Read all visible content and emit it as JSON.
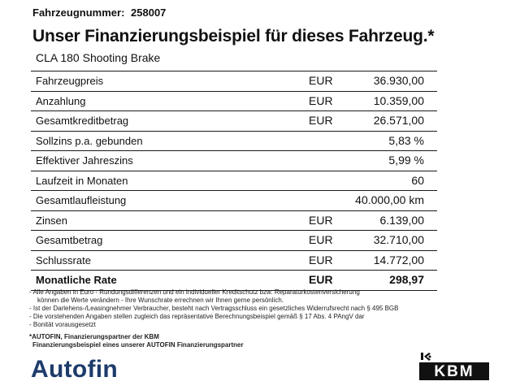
{
  "header": {
    "vehicle_number_label": "Fahrzeugnummer:",
    "vehicle_number": "258007",
    "title": "Unser Finanzierungsbeispiel für dieses Fahrzeug.*",
    "model": "CLA 180 Shooting Brake"
  },
  "table": {
    "rows": [
      {
        "label": "Fahrzeugpreis",
        "currency": "EUR",
        "value": "36.930,00"
      },
      {
        "label": "Anzahlung",
        "currency": "EUR",
        "value": "10.359,00"
      },
      {
        "label": "Gesamtkreditbetrag",
        "currency": "EUR",
        "value": "26.571,00"
      },
      {
        "label": "Sollzins p.a. gebunden",
        "currency": "",
        "value": "5,83 %"
      },
      {
        "label": "Effektiver Jahreszins",
        "currency": "",
        "value": "5,99 %"
      },
      {
        "label": "Laufzeit in Monaten",
        "currency": "",
        "value": "60"
      },
      {
        "label": "Gesamtlaufleistung",
        "currency": "",
        "value": "40.000,00 km"
      },
      {
        "label": "Zinsen",
        "currency": "EUR",
        "value": "6.139,00"
      },
      {
        "label": "Gesamtbetrag",
        "currency": "EUR",
        "value": "32.710,00"
      },
      {
        "label": "Schlussrate",
        "currency": "EUR",
        "value": "14.772,00"
      },
      {
        "label": "Monatliche Rate",
        "currency": "EUR",
        "value": "298,97"
      }
    ]
  },
  "notes": {
    "line1": "- Alle Angaben in Euro - Rundungsdifferenzen und ein individueller Kreditschutz bzw. Reparaturkostenversicherung",
    "line2": "können die Werte verändern - Ihre Wunschrate errechnen wir Ihnen gerne persönlich.",
    "line3": "- Ist der Darlehens-/Leasingnehmer Verbraucher, besteht nach Vertragsschluss ein gesetzliches Widerrufsrecht nach § 495 BGB",
    "line4": "- Die vorstehenden Angaben stellen zugleich das repräsentative Berechnungsbeispiel gemäß § 17 Abs. 4 PAngV dar",
    "line5": "- Bonität vorausgesetzt"
  },
  "partner": {
    "line1": "*AUTOFIN, Finanzierungspartner der KBM",
    "line2": "Finanzierungsbeispiel eines unserer AUTOFIN Finanzierungspartner"
  },
  "logos": {
    "autofin": "Autofin",
    "kbm": "KBM",
    "autofin_color": "#1d3b6b"
  }
}
